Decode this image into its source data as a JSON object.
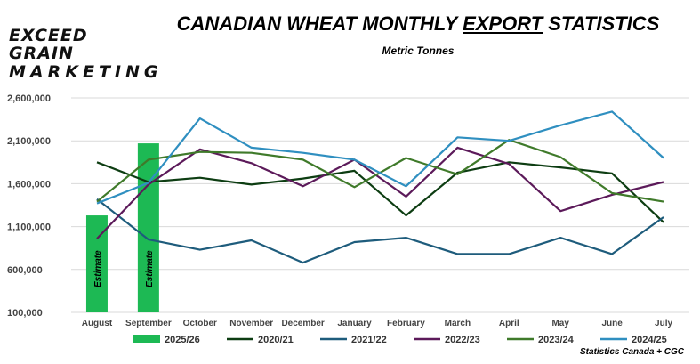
{
  "logo": {
    "line1": "EXCEED GRAIN",
    "line2": "MARKETING"
  },
  "title": {
    "pre": "CANADIAN WHEAT MONTHLY ",
    "emph": "EXPORT",
    "post": " STATISTICS"
  },
  "subtitle": "Metric Tonnes",
  "source": "Statistics Canada + CGC",
  "chart_data": {
    "type": "bar+line",
    "title": "CANADIAN WHEAT MONTHLY EXPORT STATISTICS",
    "ylabel": "Metric Tonnes",
    "ylim": [
      100000,
      2600000
    ],
    "yticks": [
      100000,
      600000,
      1100000,
      1600000,
      2100000,
      2600000
    ],
    "ytick_labels": [
      "100,000",
      "600,000",
      "1,100,000",
      "1,600,000",
      "2,100,000",
      "2,600,000"
    ],
    "grid": true,
    "legend": "bottom",
    "categories": [
      "August",
      "September",
      "October",
      "November",
      "December",
      "January",
      "February",
      "March",
      "April",
      "May",
      "June",
      "July"
    ],
    "bars": {
      "name": "2025/26",
      "color": "#1db954",
      "values": [
        1230000,
        2070000
      ],
      "labels": [
        "Estimate",
        "Estimate"
      ]
    },
    "series": [
      {
        "name": "2020/21",
        "color": "#0d3d12",
        "values": [
          1850000,
          1620000,
          1670000,
          1590000,
          1660000,
          1750000,
          1230000,
          1730000,
          1850000,
          1790000,
          1720000,
          1150000
        ]
      },
      {
        "name": "2021/22",
        "color": "#1e5c7c",
        "values": [
          1420000,
          950000,
          830000,
          940000,
          680000,
          920000,
          970000,
          780000,
          780000,
          970000,
          780000,
          1210000
        ]
      },
      {
        "name": "2022/23",
        "color": "#5c1a5a",
        "values": [
          960000,
          1590000,
          2000000,
          1840000,
          1570000,
          1880000,
          1450000,
          2020000,
          1830000,
          1280000,
          1470000,
          1620000
        ]
      },
      {
        "name": "2023/24",
        "color": "#3f7a2a",
        "values": [
          1390000,
          1880000,
          1970000,
          1960000,
          1880000,
          1560000,
          1900000,
          1710000,
          2110000,
          1910000,
          1490000,
          1390000
        ]
      },
      {
        "name": "2024/25",
        "color": "#2f8fc0",
        "values": [
          1370000,
          1610000,
          2360000,
          2020000,
          1960000,
          1880000,
          1570000,
          2140000,
          2100000,
          2280000,
          2440000,
          1900000
        ]
      }
    ]
  }
}
